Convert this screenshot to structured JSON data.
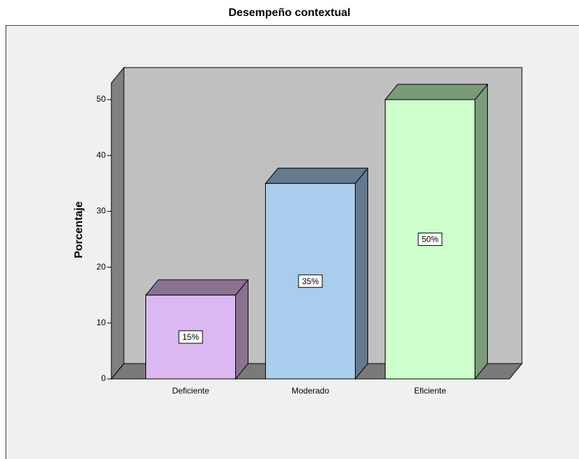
{
  "chart_data": {
    "type": "bar3d",
    "title": "Desempeño contextual",
    "y_label": "Porcentaje",
    "categories": [
      "Deficiente",
      "Moderado",
      "Eficiente"
    ],
    "values": [
      15,
      35,
      50
    ],
    "value_labels": [
      "15%",
      "35%",
      "50%"
    ],
    "colors": [
      "#dcb8f2",
      "#aacdee",
      "#ccffcc"
    ],
    "side_colors": [
      "#8a7390",
      "#65798f",
      "#7a9a7a"
    ],
    "ylim": [
      0,
      53
    ],
    "yticks": [
      0,
      10,
      20,
      30,
      40,
      50
    ]
  }
}
